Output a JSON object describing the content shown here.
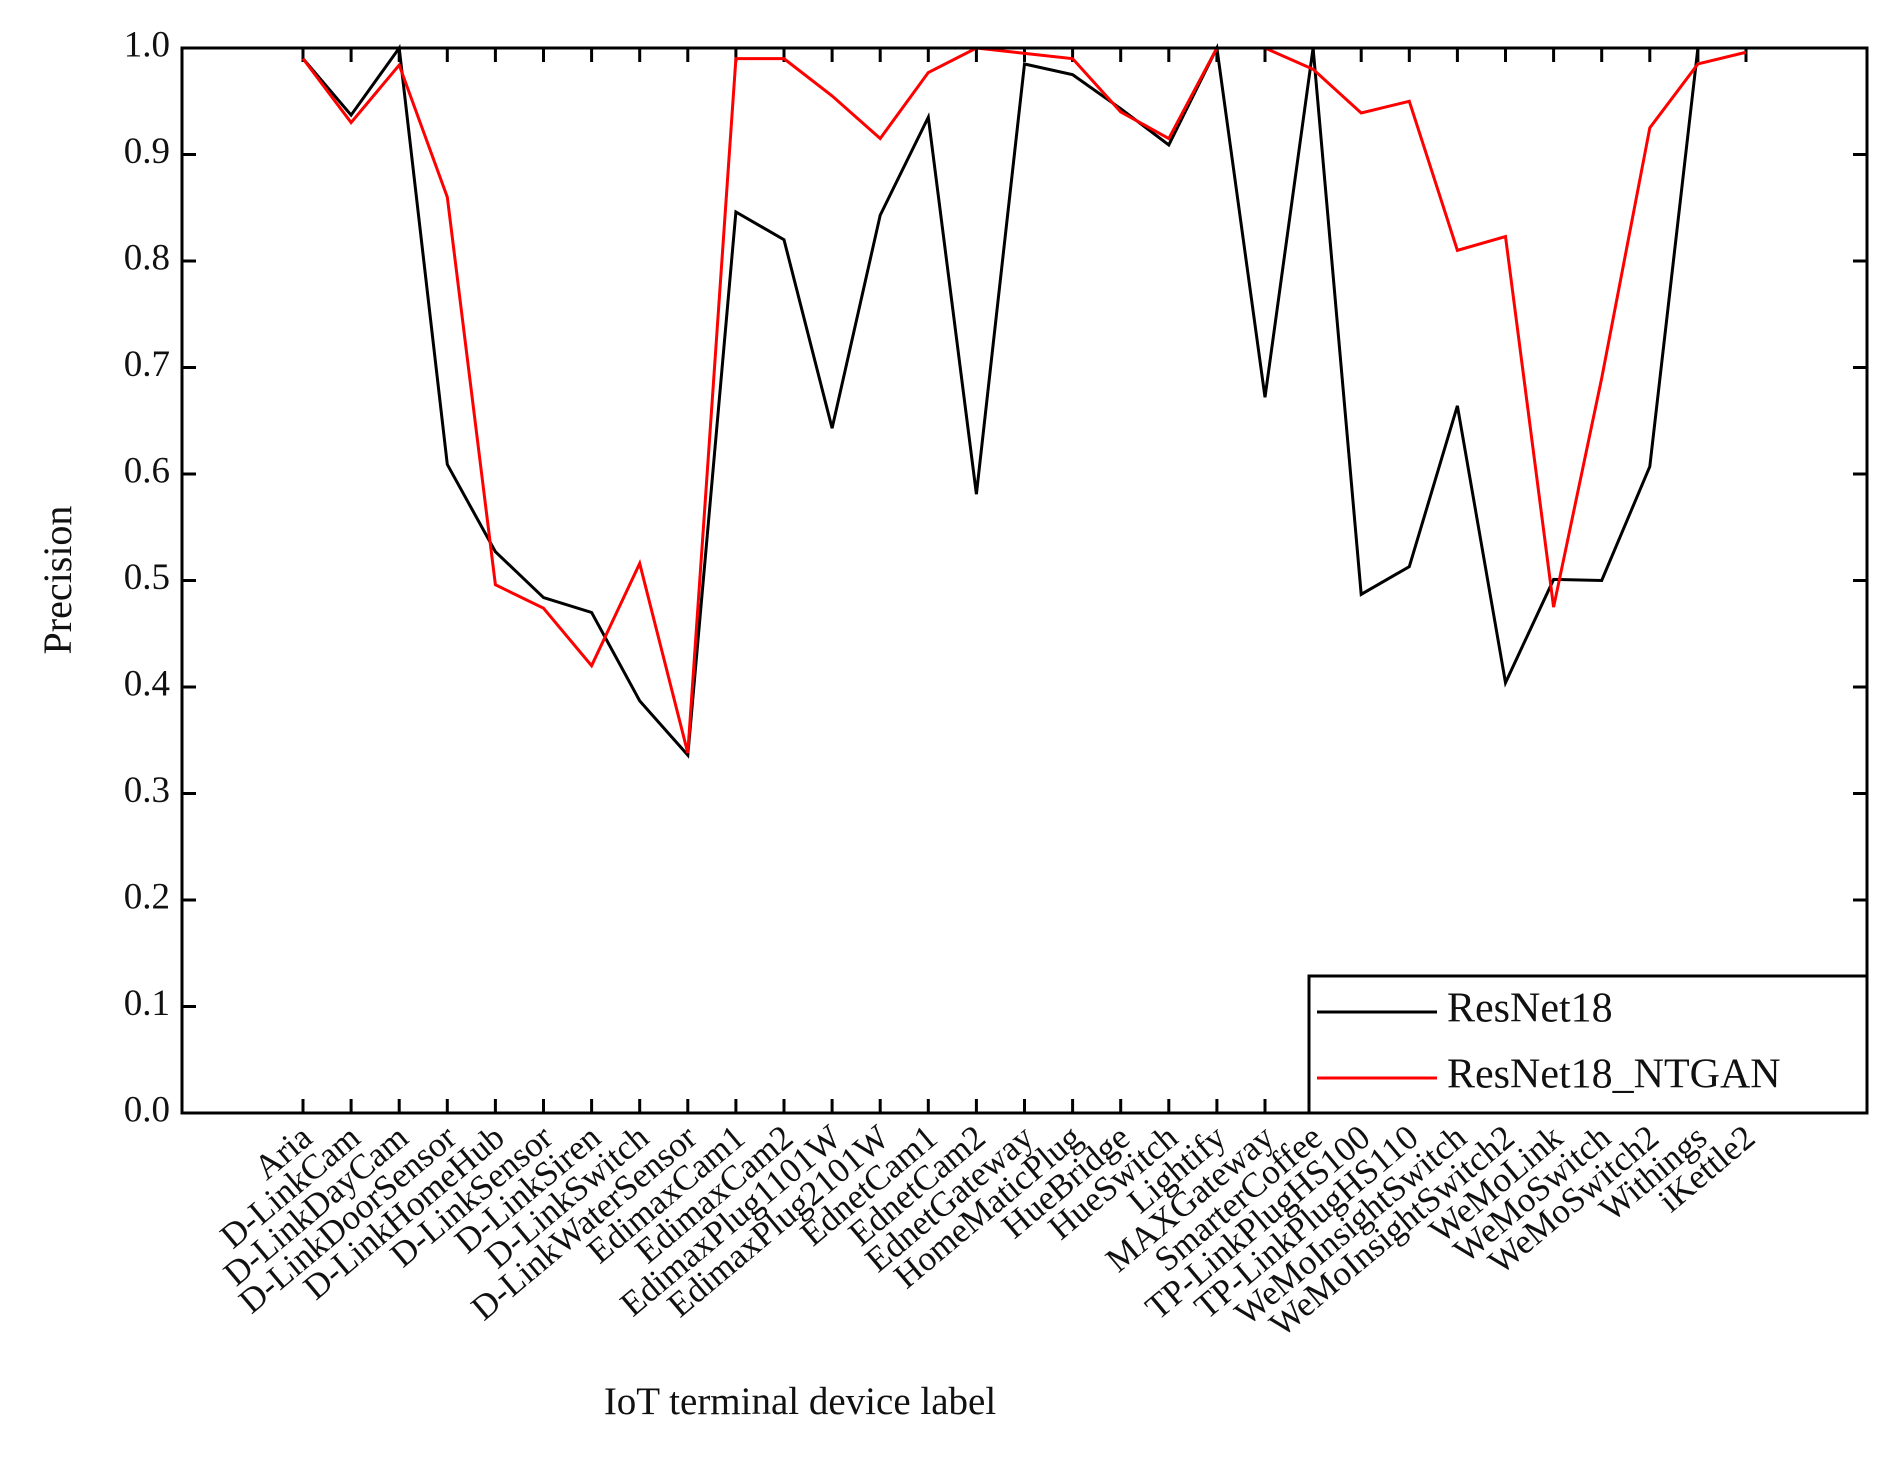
{
  "chart_data": {
    "type": "line",
    "x_label": "IoT terminal device label",
    "y_label": "Precision",
    "categories": [
      "Aria",
      "D-LinkCam",
      "D-LinkDayCam",
      "D-LinkDoorSensor",
      "D-LinkHomeHub",
      "D-LinkSensor",
      "D-LinkSiren",
      "D-LinkSwitch",
      "D-LinkWaterSensor",
      "EdimaxCam1",
      "EdimaxCam2",
      "EdimaxPlug1101W",
      "EdimaxPlug2101W",
      "EdnetCam1",
      "EdnetCam2",
      "EdnetGateway",
      "HomeMaticPlug",
      "HueBridge",
      "HueSwitch",
      "Lightify",
      "MAXGateway",
      "SmarterCoffee",
      "TP-LinkPlugHS100",
      "TP-LinkPlugHS110",
      "WeMoInsightSwitch",
      "WeMoInsightSwitch2",
      "WeMoLink",
      "WeMoSwitch",
      "WeMoSwitch2",
      "Withings",
      "iKettle2"
    ],
    "series": [
      {
        "name": "ResNet18",
        "color": "#000000",
        "values": [
          0.99,
          0.937,
          1.0,
          0.609,
          0.527,
          0.484,
          0.47,
          0.387,
          0.336,
          0.846,
          0.82,
          0.643,
          0.843,
          0.935,
          0.581,
          0.985,
          0.975,
          0.943,
          0.909,
          1.0,
          0.672,
          1.0,
          0.487,
          0.513,
          0.664,
          0.404,
          0.501,
          0.5,
          0.607,
          1.0,
          1.0
        ]
      },
      {
        "name": "ResNet18_NTGAN",
        "color": "#ff0000",
        "values": [
          0.99,
          0.93,
          0.984,
          0.86,
          0.496,
          0.474,
          0.42,
          0.516,
          0.338,
          0.99,
          0.99,
          0.955,
          0.915,
          0.977,
          1.0,
          0.995,
          0.99,
          0.94,
          0.915,
          1.0,
          1.0,
          0.98,
          0.939,
          0.95,
          0.81,
          0.823,
          0.475,
          0.69,
          0.925,
          0.985,
          0.996
        ]
      }
    ],
    "ylim": [
      0.0,
      1.0
    ],
    "yticks": [
      {
        "value": 0,
        "label": "0.0"
      },
      0.1,
      0.2,
      0.3,
      0.4,
      0.5,
      0.6,
      0.7,
      0.8,
      0.9,
      {
        "value": 1,
        "label": "1.0"
      }
    ],
    "legend": "lower right"
  }
}
